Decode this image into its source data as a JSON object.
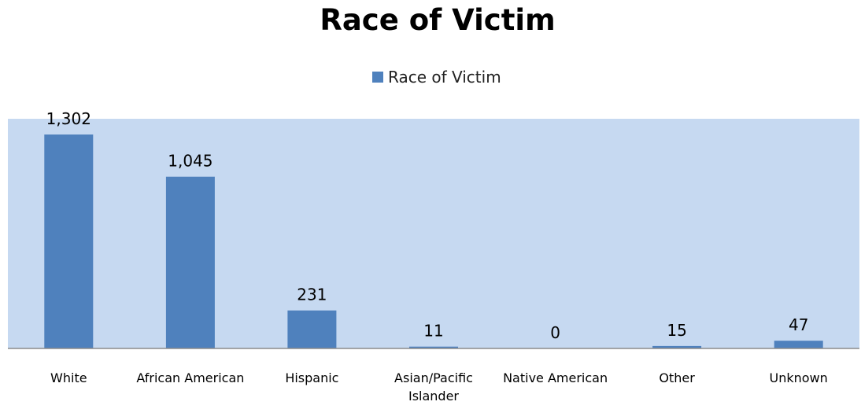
{
  "chart_data": {
    "type": "bar",
    "title": "Race of Victim",
    "legend": {
      "label": "Race of Victim",
      "position": "top"
    },
    "categories": [
      "White",
      "African American",
      "Hispanic",
      "Asian/Pacific Islander",
      "Native American",
      "Other",
      "Unknown"
    ],
    "series": [
      {
        "name": "Race of Victim",
        "values": [
          1302,
          1045,
          231,
          11,
          0,
          15,
          47
        ],
        "labels": [
          "1,302",
          "1,045",
          "231",
          "11",
          "0",
          "15",
          "47"
        ]
      }
    ],
    "ylim": [
      0,
      1400
    ],
    "grid": false,
    "colors": {
      "bar": "#4f81bd",
      "plot_area": "#c6d9f1",
      "axis": "#8c8c8c"
    }
  }
}
